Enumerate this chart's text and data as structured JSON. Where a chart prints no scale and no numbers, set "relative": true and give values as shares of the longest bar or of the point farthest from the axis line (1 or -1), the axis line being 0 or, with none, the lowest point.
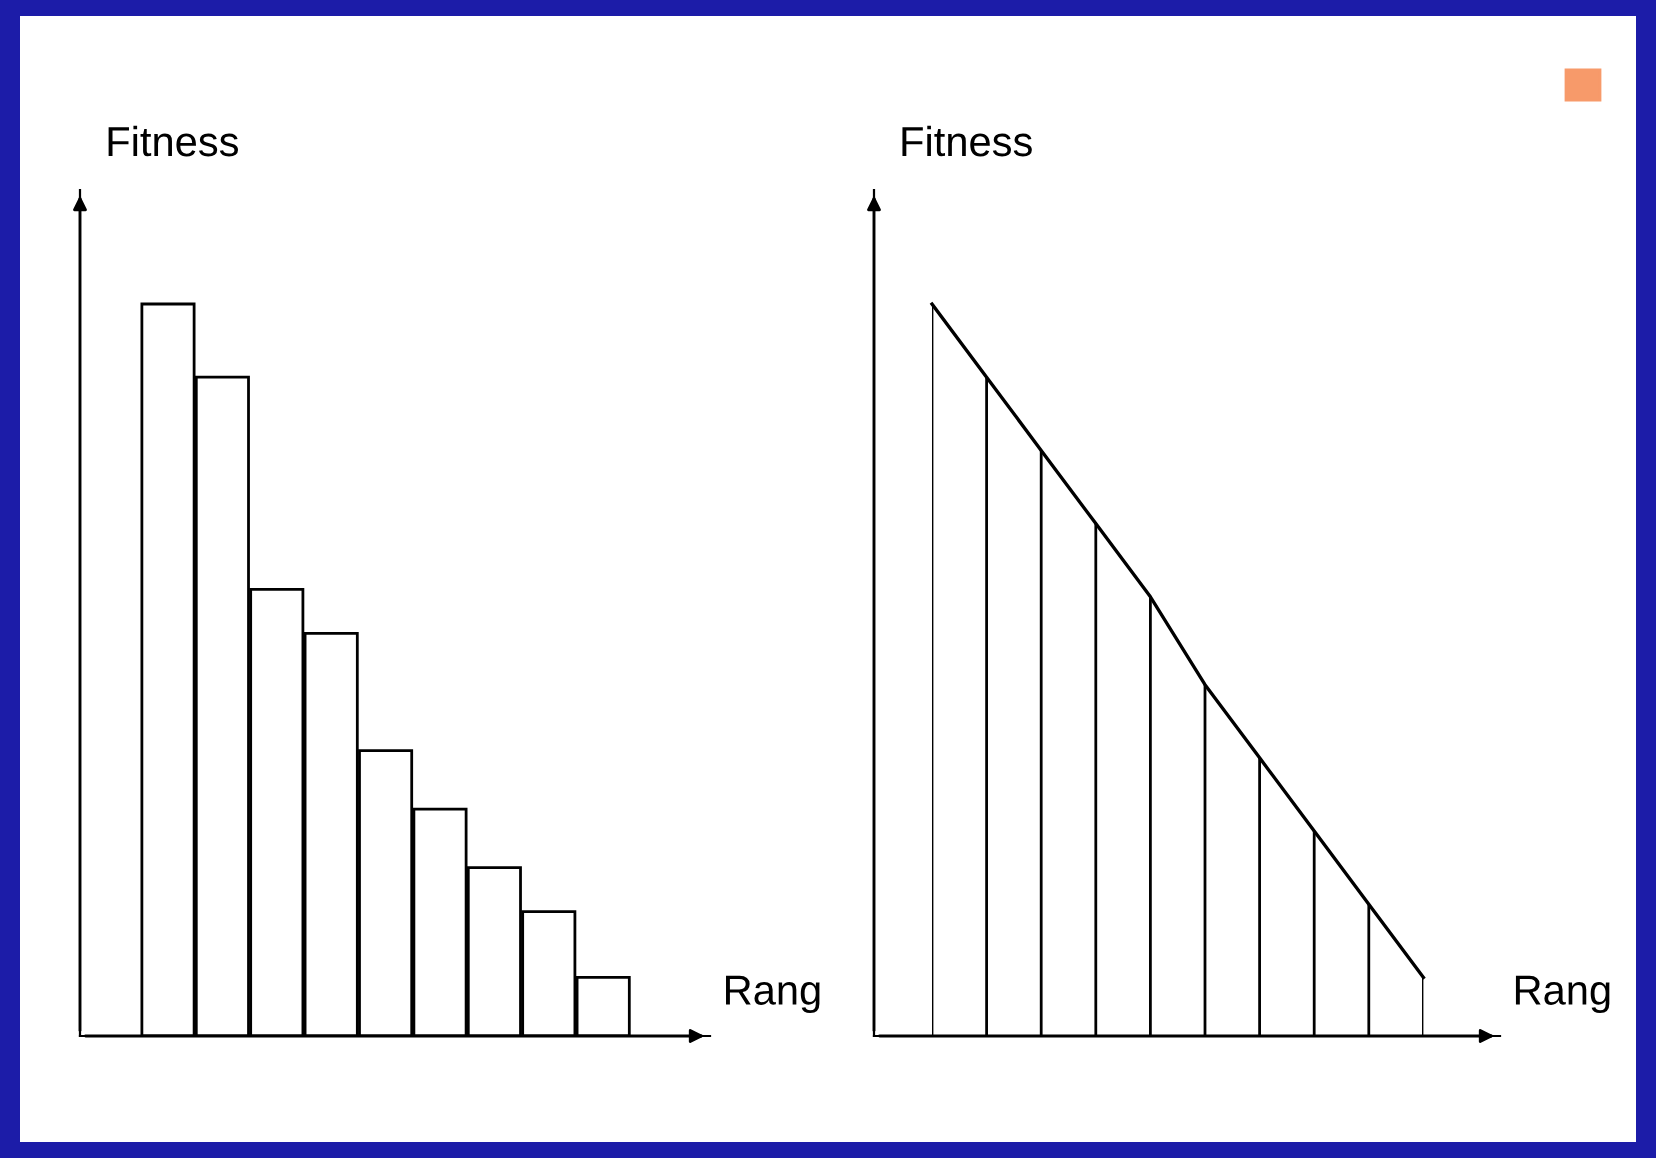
{
  "chart_data": [
    {
      "type": "bar",
      "relative": true,
      "xlabel": "Rang",
      "ylabel": "Fitness",
      "categories": [
        null,
        null,
        null,
        null,
        null,
        null,
        null,
        null,
        null
      ],
      "color": "#ffffff",
      "values": [
        1,
        0.9,
        0.61,
        0.55,
        0.39,
        0.31,
        0.23,
        0.17,
        0.08
      ]
    },
    {
      "type": "area",
      "relative": true,
      "xlabel": "Rang",
      "ylabel": "Fitness",
      "categories": [
        null,
        null,
        null,
        null,
        null,
        null,
        null,
        null,
        null,
        null
      ],
      "color": "#000000",
      "grid": "x",
      "values": [
        1,
        0.9,
        0.8,
        0.7,
        0.6,
        0.48,
        0.38,
        0.28,
        0.18,
        0.08
      ]
    }
  ]
}
